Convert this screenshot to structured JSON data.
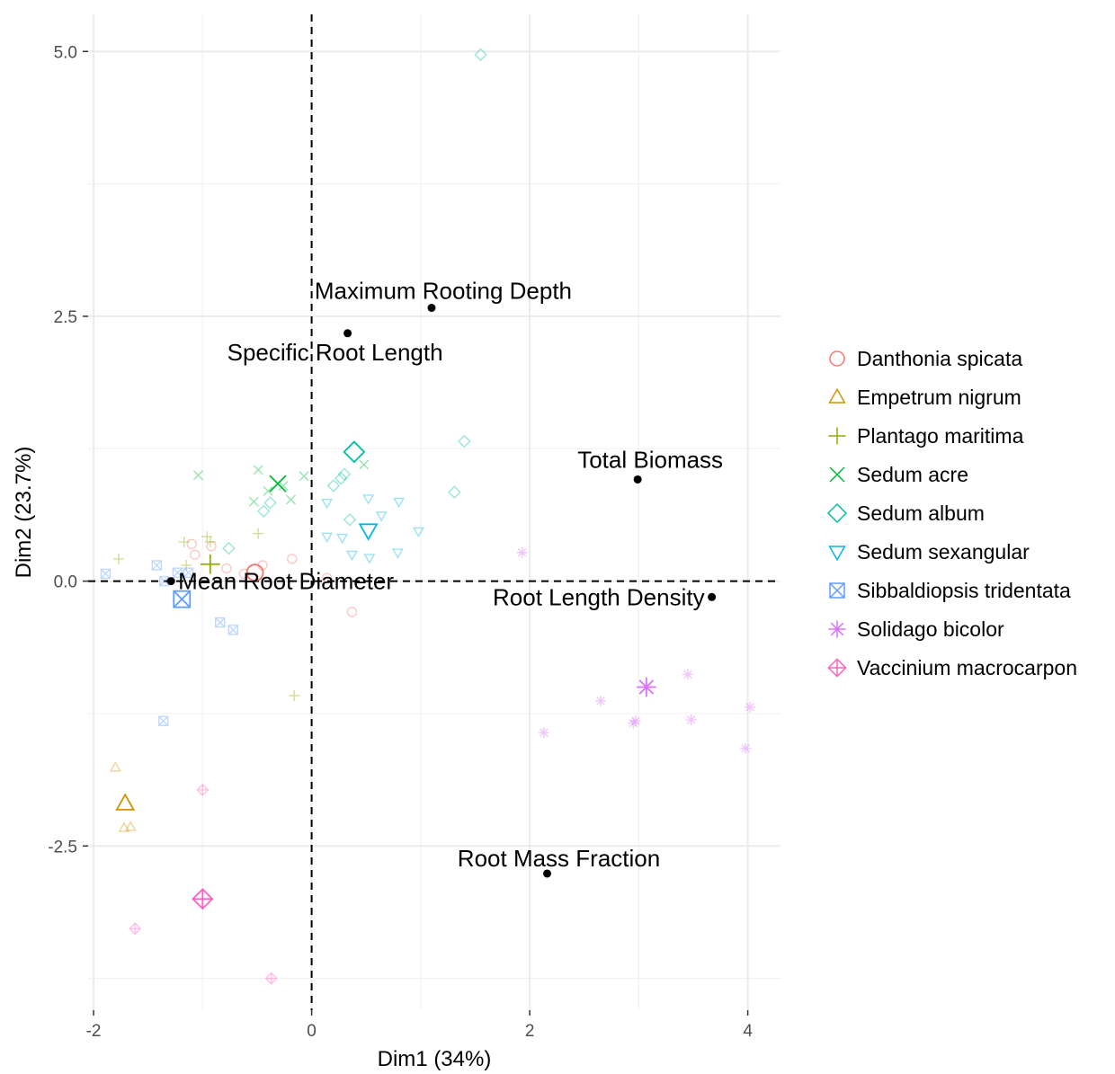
{
  "chart_data": {
    "type": "scatter",
    "xlabel": "Dim1 (34%)",
    "ylabel": "Dim2 (23.7%)",
    "xlim": [
      -2.05,
      4.3
    ],
    "ylim": [
      -4.05,
      5.35
    ],
    "x_ticks": [
      -2,
      0,
      2,
      4
    ],
    "x_tick_labels": [
      "-2",
      "0",
      "2",
      "4"
    ],
    "y_ticks": [
      -2.5,
      0.0,
      2.5,
      5.0
    ],
    "y_tick_labels": [
      "-2.5",
      "0.0",
      "2.5",
      "5.0"
    ],
    "grid": true,
    "reference_lines": {
      "x": 0,
      "y": 0,
      "style": "dashed"
    },
    "legend_position": "right",
    "variables": [
      {
        "label": "Maximum Rooting Depth",
        "x": 1.1,
        "y": 2.58
      },
      {
        "label": "Specific Root Length",
        "x": 0.33,
        "y": 2.34
      },
      {
        "label": "Total Biomass",
        "x": 2.99,
        "y": 0.96
      },
      {
        "label": "Mean Root Diameter",
        "x": -1.29,
        "y": 0.0
      },
      {
        "label": "Root Length Density",
        "x": 3.67,
        "y": -0.15
      },
      {
        "label": "Root Mass Fraction",
        "x": 2.16,
        "y": -2.76
      }
    ],
    "series": [
      {
        "name": "Danthonia spicata",
        "color": "#F8766D",
        "shape": "circle",
        "centroid": {
          "x": -0.52,
          "y": 0.08
        },
        "points": [
          [
            -1.1,
            0.35
          ],
          [
            -1.07,
            0.25
          ],
          [
            -0.92,
            0.33
          ],
          [
            -0.78,
            0.12
          ],
          [
            -0.62,
            0.07
          ],
          [
            -0.45,
            0.15
          ],
          [
            -0.18,
            0.21
          ],
          [
            0.14,
            0.03
          ],
          [
            0.37,
            -0.29
          ]
        ]
      },
      {
        "name": "Empetrum nigrum",
        "color": "#D39200",
        "shape": "triangle-up",
        "centroid": {
          "x": -1.71,
          "y": -2.1
        },
        "points": [
          [
            -1.8,
            -1.76
          ],
          [
            -1.72,
            -2.33
          ],
          [
            -1.66,
            -2.32
          ]
        ]
      },
      {
        "name": "Plantago maritima",
        "color": "#93AA00",
        "shape": "plus",
        "centroid": {
          "x": -0.93,
          "y": 0.16
        },
        "points": [
          [
            -1.77,
            0.21
          ],
          [
            -1.17,
            0.37
          ],
          [
            -1.15,
            0.15
          ],
          [
            -0.96,
            0.42
          ],
          [
            -0.93,
            0.37
          ],
          [
            -0.49,
            0.45
          ],
          [
            -0.16,
            -1.08
          ]
        ]
      },
      {
        "name": "Sedum acre",
        "color": "#00BA38",
        "shape": "cross",
        "centroid": {
          "x": -0.31,
          "y": 0.92
        },
        "points": [
          [
            -1.04,
            1.0
          ],
          [
            -0.53,
            0.75
          ],
          [
            -0.49,
            1.05
          ],
          [
            -0.4,
            0.85
          ],
          [
            -0.26,
            0.9
          ],
          [
            -0.19,
            0.77
          ],
          [
            -0.07,
            0.99
          ],
          [
            0.48,
            1.1
          ]
        ]
      },
      {
        "name": "Sedum album",
        "color": "#00C19F",
        "shape": "diamond",
        "centroid": {
          "x": 0.39,
          "y": 1.22
        },
        "points": [
          [
            -0.76,
            0.31
          ],
          [
            -0.44,
            0.66
          ],
          [
            -0.38,
            0.74
          ],
          [
            0.2,
            0.9
          ],
          [
            0.27,
            0.97
          ],
          [
            0.3,
            1.01
          ],
          [
            0.35,
            0.58
          ],
          [
            1.31,
            0.84
          ],
          [
            1.4,
            1.32
          ],
          [
            1.55,
            4.97
          ]
        ]
      },
      {
        "name": "Sedum sexangular",
        "color": "#00B9E3",
        "shape": "triangle-down",
        "centroid": {
          "x": 0.52,
          "y": 0.48
        },
        "points": [
          [
            0.14,
            0.74
          ],
          [
            0.14,
            0.42
          ],
          [
            0.28,
            0.41
          ],
          [
            0.37,
            0.25
          ],
          [
            0.52,
            0.78
          ],
          [
            0.53,
            0.22
          ],
          [
            0.64,
            0.62
          ],
          [
            0.79,
            0.27
          ],
          [
            0.8,
            0.75
          ],
          [
            0.98,
            0.47
          ]
        ]
      },
      {
        "name": "Sibbaldiopsis tridentata",
        "color": "#619CFF",
        "shape": "square-cross",
        "centroid": {
          "x": -1.19,
          "y": -0.17
        },
        "points": [
          [
            -1.89,
            0.07
          ],
          [
            -1.42,
            0.15
          ],
          [
            -1.35,
            0.0
          ],
          [
            -1.23,
            0.08
          ],
          [
            -1.13,
            0.08
          ],
          [
            -0.84,
            -0.39
          ],
          [
            -0.72,
            -0.46
          ],
          [
            -1.36,
            -1.32
          ]
        ]
      },
      {
        "name": "Solidago bicolor",
        "color": "#DB72FB",
        "shape": "asterisk",
        "centroid": {
          "x": 3.07,
          "y": -1.0
        },
        "points": [
          [
            1.93,
            0.27
          ],
          [
            2.13,
            -1.43
          ],
          [
            2.65,
            -1.13
          ],
          [
            2.95,
            -1.34
          ],
          [
            2.97,
            -1.32
          ],
          [
            3.45,
            -0.88
          ],
          [
            3.48,
            -1.31
          ],
          [
            3.98,
            -1.58
          ],
          [
            4.02,
            -1.19
          ]
        ]
      },
      {
        "name": "Vaccinium macrocarpon",
        "color": "#FF61C3",
        "shape": "diamond-plus",
        "centroid": {
          "x": -1.0,
          "y": -3.0
        },
        "points": [
          [
            -1.62,
            -3.28
          ],
          [
            -1.0,
            -1.97
          ],
          [
            -0.37,
            -3.75
          ]
        ]
      }
    ]
  }
}
